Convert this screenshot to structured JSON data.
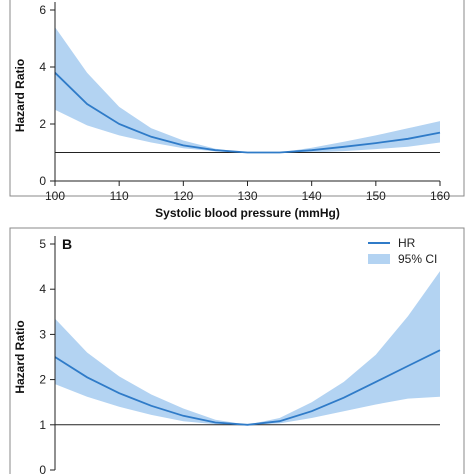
{
  "colors": {
    "hr_line": "#2f7bc8",
    "ci_fill": "#b3d3f2",
    "reference_line": "#222222",
    "frame": "#888888"
  },
  "chart_data": [
    {
      "type": "area",
      "panel_label": "",
      "xlabel": "Systolic blood pressure (mmHg)",
      "ylabel": "Hazard Ratio",
      "xlim": [
        100,
        160
      ],
      "ylim": [
        0,
        6
      ],
      "x_ticks": [
        100,
        110,
        120,
        130,
        140,
        150,
        160
      ],
      "y_ticks": [
        0,
        2,
        4,
        6
      ],
      "reference_line_y": 1,
      "series": [
        {
          "name": "HR",
          "x": [
            100,
            105,
            110,
            115,
            120,
            125,
            130,
            135,
            140,
            145,
            150,
            155,
            160
          ],
          "y": [
            3.8,
            2.7,
            2.0,
            1.55,
            1.25,
            1.08,
            1.0,
            1.0,
            1.08,
            1.2,
            1.33,
            1.48,
            1.7
          ],
          "ci_lower": [
            2.5,
            1.95,
            1.6,
            1.35,
            1.15,
            1.04,
            1.0,
            1.0,
            1.0,
            1.05,
            1.12,
            1.2,
            1.35
          ],
          "ci_upper": [
            5.4,
            3.8,
            2.6,
            1.85,
            1.42,
            1.13,
            1.0,
            1.0,
            1.17,
            1.38,
            1.6,
            1.85,
            2.1
          ]
        }
      ]
    },
    {
      "type": "area",
      "panel_label": "B",
      "xlabel": "",
      "ylabel": "Hazard Ratio",
      "xlim": [
        100,
        160
      ],
      "ylim": [
        0,
        5
      ],
      "x_ticks": [],
      "y_ticks": [
        0,
        1,
        2,
        3,
        4,
        5
      ],
      "reference_line_y": 1,
      "legend": {
        "position": "top-right",
        "entries": [
          "HR",
          "95% CI"
        ]
      },
      "series": [
        {
          "name": "HR",
          "x": [
            100,
            105,
            110,
            115,
            120,
            125,
            130,
            135,
            140,
            145,
            150,
            155,
            160
          ],
          "y": [
            2.5,
            2.05,
            1.7,
            1.42,
            1.2,
            1.05,
            1.0,
            1.08,
            1.3,
            1.6,
            1.95,
            2.3,
            2.65
          ],
          "ci_lower": [
            1.9,
            1.62,
            1.4,
            1.22,
            1.08,
            1.01,
            1.0,
            1.03,
            1.15,
            1.3,
            1.45,
            1.58,
            1.62
          ],
          "ci_upper": [
            3.35,
            2.6,
            2.07,
            1.67,
            1.36,
            1.11,
            1.0,
            1.15,
            1.5,
            1.95,
            2.55,
            3.4,
            4.4
          ]
        }
      ]
    }
  ]
}
